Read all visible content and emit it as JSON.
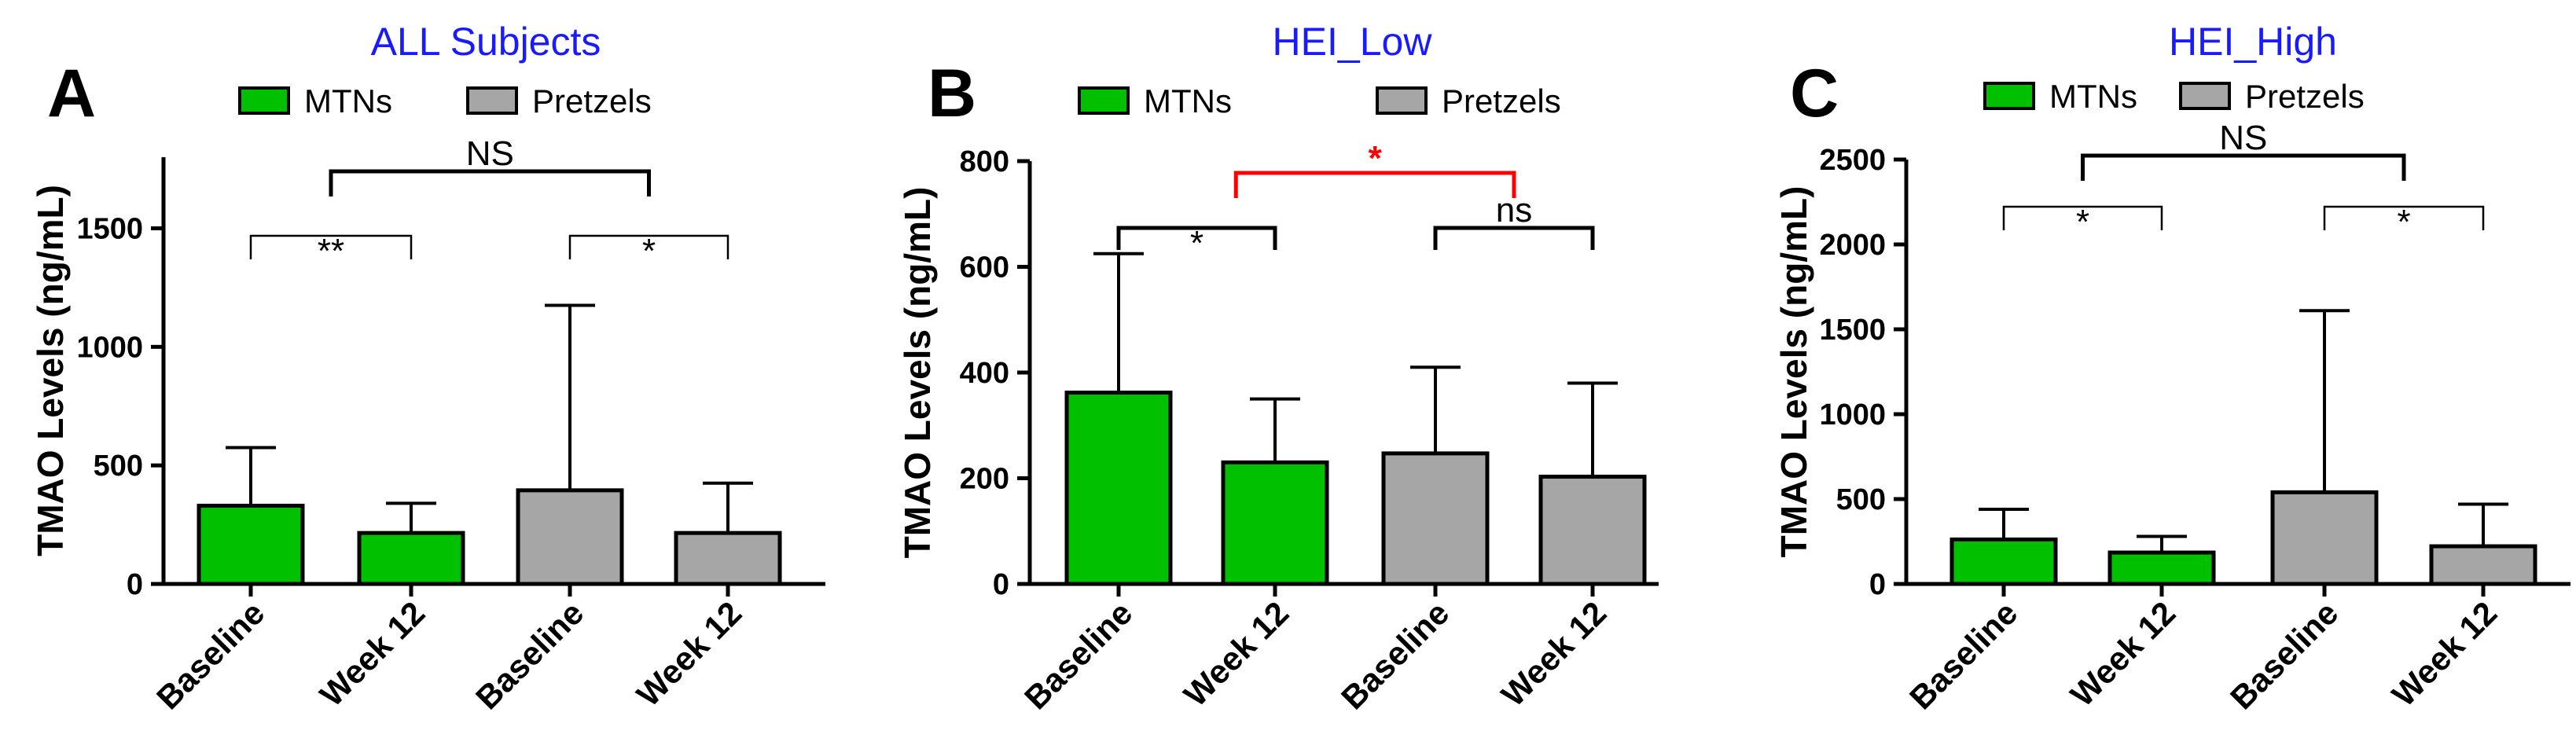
{
  "colors": {
    "mtns": "#00c000",
    "pretzels": "#a6a6a6",
    "title": "#1a1aff",
    "sig_highlight": "#ff0000",
    "axis": "#000000"
  },
  "legend": {
    "mtns": "MTNs",
    "pretzels": "Pretzels"
  },
  "chart_data": [
    {
      "type": "bar",
      "panel_letter": "A",
      "title": "ALL Subjects",
      "ylabel": "TMAO Levels (ng/mL)",
      "ylim": [
        0,
        1800
      ],
      "yticks": [
        0,
        500,
        1000,
        1500
      ],
      "ytick_labels": [
        "0",
        "500",
        "1000",
        "1500"
      ],
      "categories": [
        "Baseline",
        "Week 12",
        "Baseline",
        "Week 12"
      ],
      "groups": [
        "MTNs",
        "MTNs",
        "Pretzels",
        "Pretzels"
      ],
      "values": [
        330,
        215,
        395,
        215
      ],
      "error_upper": [
        575,
        340,
        1175,
        425
      ],
      "comparisons": [
        {
          "from": 0,
          "to": 1,
          "label": "**",
          "level": 1,
          "style": "thin",
          "color": "#000000"
        },
        {
          "from": 2,
          "to": 3,
          "label": "*",
          "level": 1,
          "style": "thin",
          "color": "#000000"
        },
        {
          "from": 0.5,
          "to": 2.5,
          "label": "NS",
          "level": 2,
          "style": "thick",
          "color": "#000000"
        }
      ]
    },
    {
      "type": "bar",
      "panel_letter": "B",
      "title": "HEI_Low",
      "ylabel": "TMAO Levels (ng/mL)",
      "ylim": [
        0,
        800
      ],
      "yticks": [
        0,
        200,
        400,
        600,
        800
      ],
      "ytick_labels": [
        "0",
        "200",
        "400",
        "600",
        "800"
      ],
      "categories": [
        "Baseline",
        "Week 12",
        "Baseline",
        "Week 12"
      ],
      "groups": [
        "MTNs",
        "MTNs",
        "Pretzels",
        "Pretzels"
      ],
      "values": [
        362,
        230,
        247,
        203
      ],
      "error_upper": [
        625,
        350,
        410,
        380
      ],
      "comparisons": [
        {
          "from": 0,
          "to": 1,
          "label": "*",
          "level": 1,
          "style": "thick",
          "color": "#000000"
        },
        {
          "from": 2,
          "to": 3,
          "label": "ns",
          "level": 1,
          "style": "thick",
          "color": "#000000"
        },
        {
          "from": 0.75,
          "to": 2.5,
          "label": "*",
          "level": 2,
          "style": "thick",
          "color": "#ff0000"
        }
      ]
    },
    {
      "type": "bar",
      "panel_letter": "C",
      "title": "HEI_High",
      "ylabel": "TMAO Levels (ng/mL)",
      "ylim": [
        0,
        2500
      ],
      "yticks": [
        0,
        500,
        1000,
        1500,
        2000,
        2500
      ],
      "ytick_labels": [
        "0",
        "500",
        "1000",
        "1500",
        "2000",
        "2500"
      ],
      "categories": [
        "Baseline",
        "Week 12",
        "Baseline",
        "Week 12"
      ],
      "groups": [
        "MTNs",
        "MTNs",
        "Pretzels",
        "Pretzels"
      ],
      "values": [
        262,
        185,
        540,
        222
      ],
      "error_upper": [
        440,
        280,
        1610,
        470
      ],
      "comparisons": [
        {
          "from": 0,
          "to": 1,
          "label": "*",
          "level": 1,
          "style": "thin",
          "color": "#000000"
        },
        {
          "from": 2,
          "to": 3,
          "label": "*",
          "level": 1,
          "style": "thin",
          "color": "#000000"
        },
        {
          "from": 0.5,
          "to": 2.5,
          "label": "NS",
          "level": 2,
          "style": "thick",
          "color": "#000000"
        }
      ]
    }
  ]
}
